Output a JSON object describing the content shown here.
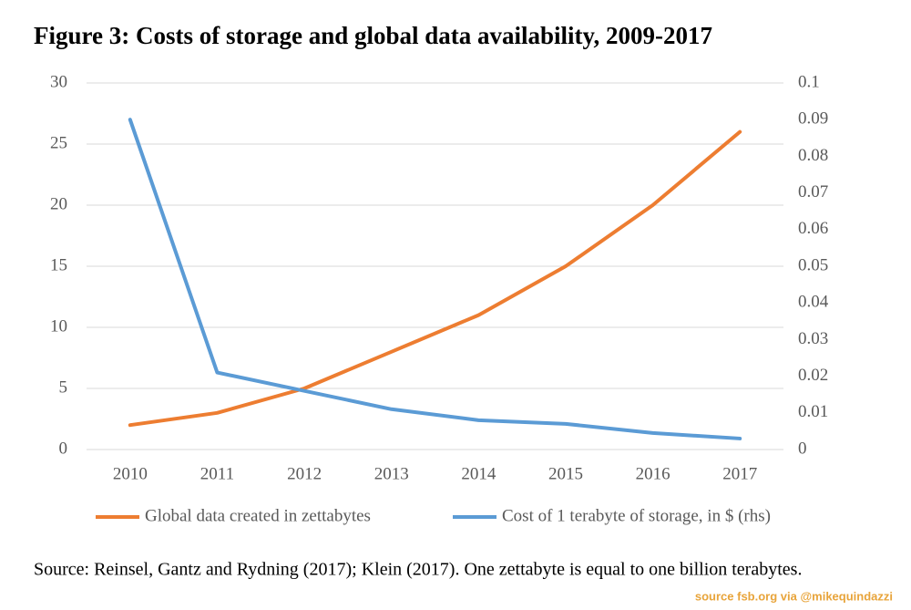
{
  "chart_data": {
    "type": "line",
    "title": "Figure 3: Costs of storage and global data availability, 2009-2017",
    "categories": [
      "2010",
      "2011",
      "2012",
      "2013",
      "2014",
      "2015",
      "2016",
      "2017"
    ],
    "series": [
      {
        "name": "Global data created in zettabytes",
        "color": "#ED7D31",
        "values": [
          2,
          3,
          5,
          8,
          11,
          15,
          20,
          26
        ]
      },
      {
        "name": "Cost of 1 terabyte of storage, in $ (rhs)",
        "color": "#5B9BD5",
        "axis": "y2",
        "values": [
          0.09,
          0.021,
          0.016,
          0.011,
          0.008,
          0.007,
          0.0045,
          0.003
        ]
      }
    ],
    "ylim": [
      0,
      30
    ],
    "yticks": [
      0,
      5,
      10,
      15,
      20,
      25,
      30
    ],
    "y2lim": [
      0,
      0.1
    ],
    "y2ticks": [
      0,
      0.01,
      0.02,
      0.03,
      0.04,
      0.05,
      0.06,
      0.07,
      0.08,
      0.09,
      0.1
    ],
    "grid": true,
    "legend": "bottom"
  },
  "source": "Source: Reinsel, Gantz and Rydning (2017); Klein (2017). One zettabyte is equal to one billion terabytes.",
  "credit": "source fsb.org via @mikequindazzi"
}
